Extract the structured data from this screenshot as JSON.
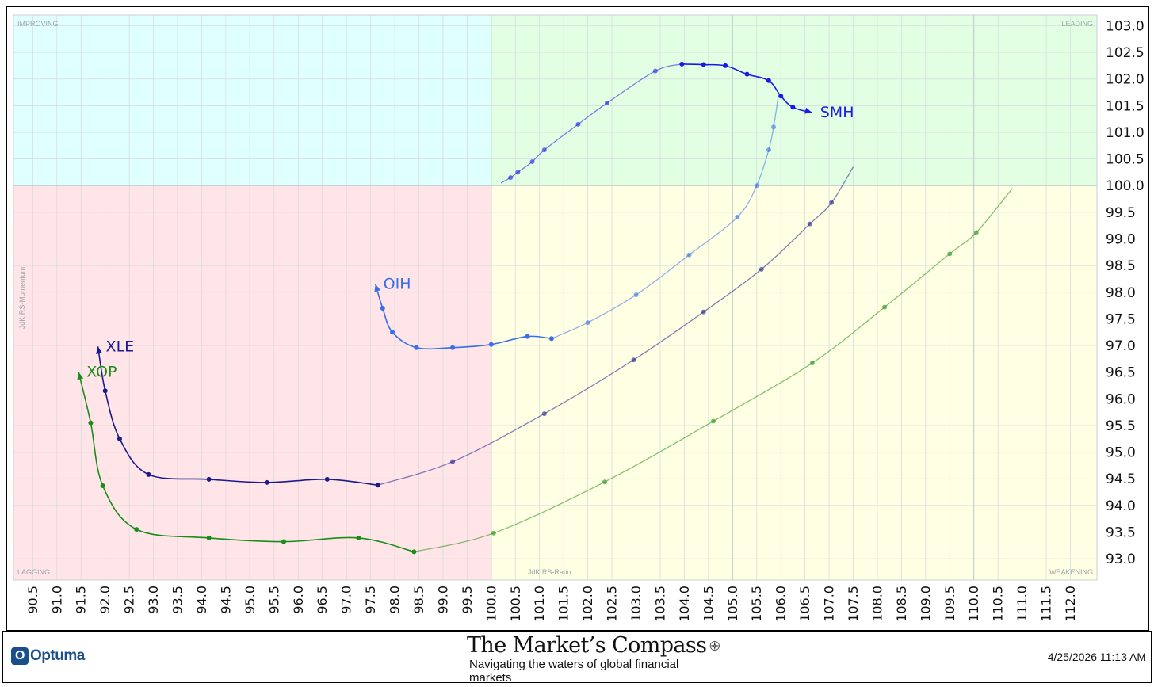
{
  "footer": {
    "logo_text": "Optuma",
    "brand_title": "The Market’s Compass",
    "brand_subtitle": "Navigating the waters of global financial markets",
    "timestamp": "4/25/2026 11:13 AM"
  },
  "chart_data": {
    "type": "scatter",
    "subtype": "relative-rotation-graph",
    "xlabel": "JdK RS-Ratio",
    "ylabel": "JdK RS-Momentum",
    "xlim": [
      90.1,
      112.55
    ],
    "ylim": [
      92.6,
      103.2
    ],
    "xticks": [
      90.5,
      91.0,
      91.5,
      92.0,
      92.5,
      93.0,
      93.5,
      94.0,
      94.5,
      95.0,
      95.5,
      96.0,
      96.5,
      97.0,
      97.5,
      98.0,
      98.5,
      99.0,
      99.5,
      100.0,
      100.5,
      101.0,
      101.5,
      102.0,
      102.5,
      103.0,
      103.5,
      104.0,
      104.5,
      105.0,
      105.5,
      106.0,
      106.5,
      107.0,
      107.5,
      108.0,
      108.5,
      109.0,
      109.5,
      110.0,
      110.5,
      111.0,
      111.5,
      112.0
    ],
    "yticks": [
      93.0,
      93.5,
      94.0,
      94.5,
      95.0,
      95.5,
      96.0,
      96.5,
      97.0,
      97.5,
      98.0,
      98.5,
      99.0,
      99.5,
      100.0,
      100.5,
      101.0,
      101.5,
      102.0,
      102.5,
      103.0
    ],
    "xtick_labels": [
      "90.5",
      "91.0",
      "91.5",
      "92.0",
      "92.5",
      "93.0",
      "93.5",
      "94.0",
      "94.5",
      "95.0",
      "95.5",
      "96.0",
      "96.5",
      "97.0",
      "97.5",
      "98.0",
      "98.5",
      "99.0",
      "99.5",
      "100.0",
      "100.5",
      "101.0",
      "101.5",
      "102.0",
      "102.5",
      "103.0",
      "103.5",
      "104.0",
      "104.5",
      "105.0",
      "105.5",
      "106.0",
      "106.5",
      "107.0",
      "107.5",
      "108.0",
      "108.5",
      "109.0",
      "109.5",
      "110.0",
      "110.5",
      "111.0",
      "111.5",
      "112.0"
    ],
    "ytick_labels": [
      "93.0",
      "93.5",
      "94.0",
      "94.5",
      "95.0",
      "95.5",
      "96.0",
      "96.5",
      "97.0",
      "97.5",
      "98.0",
      "98.5",
      "99.0",
      "99.5",
      "100.0",
      "100.5",
      "101.0",
      "101.5",
      "102.0",
      "102.5",
      "103.0"
    ],
    "center": [
      100.0,
      100.0
    ],
    "quadrants": [
      {
        "name": "IMPROVING",
        "color": "#e0ffff",
        "position": "top-left"
      },
      {
        "name": "LEADING",
        "color": "#e3ffe3",
        "position": "top-right"
      },
      {
        "name": "LAGGING",
        "color": "#ffe4e8",
        "position": "bottom-left"
      },
      {
        "name": "WEAKENING",
        "color": "#ffffe3",
        "position": "bottom-right"
      }
    ],
    "grid": true,
    "series": [
      {
        "name": "SMH",
        "color": "#1a1ae6",
        "points": [
          [
            100.2,
            100.05
          ],
          [
            100.4,
            100.15
          ],
          [
            100.55,
            100.25
          ],
          [
            100.85,
            100.45
          ],
          [
            101.1,
            100.67
          ],
          [
            101.8,
            101.15
          ],
          [
            102.4,
            101.55
          ],
          [
            103.4,
            102.15
          ],
          [
            103.95,
            102.28
          ],
          [
            104.4,
            102.27
          ],
          [
            104.85,
            102.25
          ],
          [
            105.3,
            102.09
          ],
          [
            105.75,
            101.97
          ],
          [
            106.0,
            101.68
          ],
          [
            106.25,
            101.47
          ],
          [
            106.65,
            101.37
          ]
        ]
      },
      {
        "name": "OIH",
        "color": "#3a6ee8",
        "points": [
          [
            105.95,
            101.68
          ],
          [
            105.85,
            101.1
          ],
          [
            105.75,
            100.67
          ],
          [
            105.5,
            100.0
          ],
          [
            105.1,
            99.41
          ],
          [
            104.1,
            98.7
          ],
          [
            103.0,
            97.95
          ],
          [
            102.0,
            97.43
          ],
          [
            101.25,
            97.13
          ],
          [
            100.75,
            97.17
          ],
          [
            100.0,
            97.02
          ],
          [
            99.2,
            96.96
          ],
          [
            98.45,
            96.96
          ],
          [
            97.95,
            97.25
          ],
          [
            97.75,
            97.7
          ],
          [
            97.6,
            98.15
          ]
        ]
      },
      {
        "name": "XLE",
        "color": "#1a1a8c",
        "points": [
          [
            107.5,
            100.35
          ],
          [
            107.05,
            99.68
          ],
          [
            106.6,
            99.28
          ],
          [
            105.6,
            98.43
          ],
          [
            104.4,
            97.63
          ],
          [
            102.95,
            96.73
          ],
          [
            101.1,
            95.72
          ],
          [
            99.2,
            94.82
          ],
          [
            97.65,
            94.38
          ],
          [
            96.6,
            94.49
          ],
          [
            95.35,
            94.43
          ],
          [
            94.15,
            94.49
          ],
          [
            92.9,
            94.58
          ],
          [
            92.3,
            95.25
          ],
          [
            92.0,
            96.15
          ],
          [
            91.85,
            96.98
          ]
        ]
      },
      {
        "name": "XOP",
        "color": "#1a8c1a",
        "points": [
          [
            110.8,
            99.95
          ],
          [
            110.05,
            99.12
          ],
          [
            109.5,
            98.72
          ],
          [
            108.15,
            97.72
          ],
          [
            106.65,
            96.67
          ],
          [
            104.6,
            95.58
          ],
          [
            102.35,
            94.44
          ],
          [
            100.05,
            93.48
          ],
          [
            98.4,
            93.13
          ],
          [
            97.25,
            93.39
          ],
          [
            95.7,
            93.32
          ],
          [
            94.15,
            93.39
          ],
          [
            92.65,
            93.55
          ],
          [
            91.95,
            94.37
          ],
          [
            91.7,
            95.55
          ],
          [
            91.45,
            96.5
          ]
        ]
      }
    ]
  }
}
